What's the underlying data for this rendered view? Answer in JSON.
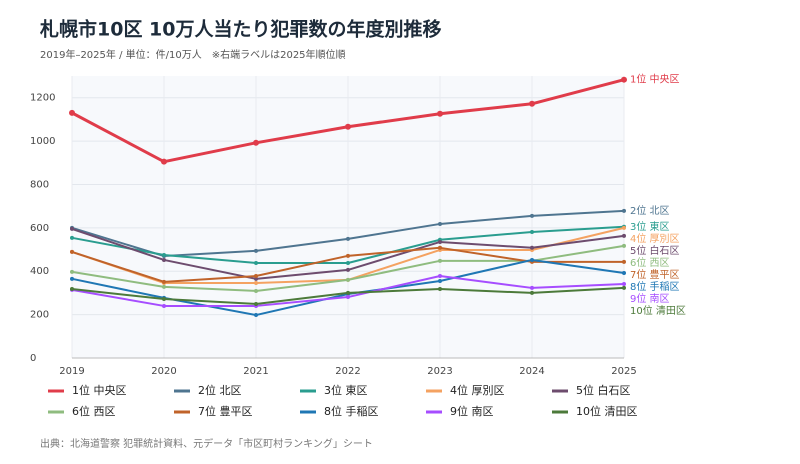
{
  "chart_data": {
    "type": "line",
    "title": "札幌市10区 10万人当たり犯罪数の年度別推移",
    "subtitle": "2019年–2025年 / 単位：件/10万人　※右端ラベルは2025年順位順",
    "source": "出典：北海道警察 犯罪統計資料、元データ「市区町村ランキング」シート",
    "categories": [
      "2019",
      "2020",
      "2021",
      "2022",
      "2023",
      "2024",
      "2025"
    ],
    "ylim": [
      0,
      1300
    ],
    "yticks": [
      0,
      200,
      400,
      600,
      800,
      1000,
      1200
    ],
    "grid": true,
    "series": [
      {
        "name": "1位 中央区",
        "color": "#e03c4a",
        "values": [
          1130,
          905,
          992,
          1066,
          1126,
          1172,
          1283
        ]
      },
      {
        "name": "2位 北区",
        "color": "#4f7590",
        "values": [
          600,
          470,
          494,
          549,
          618,
          655,
          678
        ]
      },
      {
        "name": "3位 東区",
        "color": "#2a9d8f",
        "values": [
          554,
          475,
          438,
          438,
          545,
          581,
          605
        ]
      },
      {
        "name": "4位 厚別区",
        "color": "#f4a261",
        "values": [
          489,
          346,
          346,
          360,
          498,
          498,
          600
        ]
      },
      {
        "name": "5位 白石区",
        "color": "#6d4c6e",
        "values": [
          595,
          452,
          365,
          406,
          535,
          508,
          563
        ]
      },
      {
        "name": "6位 西区",
        "color": "#8fbc7f",
        "values": [
          397,
          328,
          309,
          360,
          448,
          448,
          517
        ]
      },
      {
        "name": "7位 豊平区",
        "color": "#c0632a",
        "values": [
          489,
          351,
          378,
          471,
          508,
          443,
          443
        ]
      },
      {
        "name": "8位 手稲区",
        "color": "#1f77b4",
        "values": [
          365,
          277,
          198,
          295,
          355,
          452,
          392
        ]
      },
      {
        "name": "9位 南区",
        "color": "#a64dff",
        "values": [
          314,
          240,
          240,
          281,
          378,
          323,
          341
        ]
      },
      {
        "name": "10位 清田区",
        "color": "#4c7a3a",
        "values": [
          318,
          272,
          249,
          300,
          318,
          300,
          323
        ]
      }
    ]
  }
}
